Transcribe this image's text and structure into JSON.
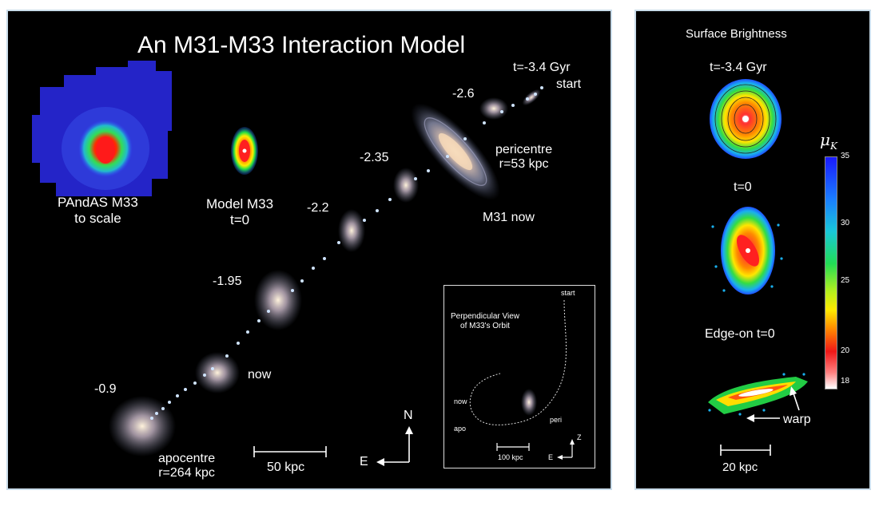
{
  "main": {
    "title": "An M31-M33 Interaction Model",
    "pandas_label": [
      "PAndAS M33",
      "to scale"
    ],
    "model_label": [
      "Model M33",
      "t=0"
    ],
    "orbit_times": {
      "start_time": "t=-3.4 Gyr",
      "start": "start",
      "t_2_6": "-2.6",
      "t_2_35": "-2.35",
      "t_2_2": "-2.2",
      "t_1_95": "-1.95",
      "t_0_9": "-0.9",
      "now": "now"
    },
    "pericentre": [
      "pericentre",
      "r=53 kpc"
    ],
    "apocentre": [
      "apocentre",
      "r=264 kpc"
    ],
    "m31_now": "M31 now",
    "scale_bar": "50 kpc",
    "compass": {
      "north": "N",
      "east": "E"
    },
    "inset": {
      "title": [
        "Perpendicular View",
        "of M33's Orbit"
      ],
      "start": "start",
      "now": "now",
      "apo": "apo",
      "peri": "peri",
      "scale_bar": "100 kpc",
      "z": "Z",
      "e": "E"
    }
  },
  "side": {
    "title": "Surface Brightness",
    "t_start": "t=-3.4 Gyr",
    "t_zero": "t=0",
    "edge_on": "Edge-on t=0",
    "warp": "warp",
    "scale_bar": "20 kpc",
    "colorbar": {
      "label": "μ",
      "label_sub": "K",
      "ticks": [
        "35",
        "30",
        "25",
        "20",
        "18"
      ]
    }
  }
}
